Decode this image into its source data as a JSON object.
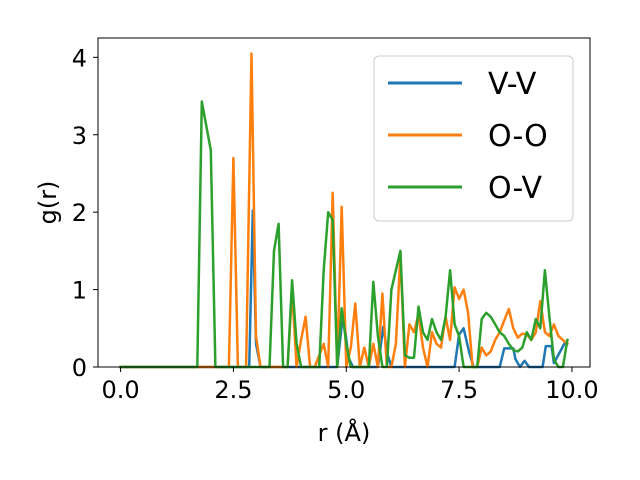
{
  "chart_data": {
    "type": "line",
    "title": "",
    "xlabel": "r (Å)",
    "ylabel": "g(r)",
    "xlim": [
      -0.5,
      10.4
    ],
    "ylim": [
      0,
      4.25
    ],
    "x_ticks": [
      0.0,
      2.5,
      5.0,
      7.5,
      10.0
    ],
    "x_tick_labels": [
      "0.0",
      "2.5",
      "5.0",
      "7.5",
      "10.0"
    ],
    "y_ticks": [
      0,
      1,
      2,
      3,
      4
    ],
    "y_tick_labels": [
      "0",
      "1",
      "2",
      "3",
      "4"
    ],
    "grid": false,
    "legend_position": "top-right",
    "series": [
      {
        "name": "V-V",
        "color": "#1f77b4",
        "x": [
          0.0,
          2.8,
          2.85,
          2.93,
          3.0,
          3.1,
          3.2,
          4.8,
          4.93,
          5.05,
          5.15,
          5.7,
          5.82,
          5.92,
          6.0,
          7.4,
          7.5,
          7.6,
          7.72,
          7.82,
          7.9,
          8.4,
          8.5,
          8.62,
          8.7,
          8.75,
          8.85,
          8.95,
          9.05,
          9.35,
          9.42,
          9.48,
          9.55,
          9.6,
          9.85
        ],
        "y": [
          0,
          0,
          0,
          2.02,
          0.3,
          0,
          0,
          0,
          0.7,
          0.12,
          0,
          0,
          0.52,
          0.15,
          0,
          0,
          0.42,
          0.5,
          0.2,
          0,
          0,
          0,
          0.24,
          0.24,
          0.24,
          0.1,
          0,
          0.08,
          0,
          0,
          0.27,
          0.27,
          0.27,
          0.05,
          0.32
        ]
      },
      {
        "name": "O-O",
        "color": "#ff7f0e",
        "x": [
          0.0,
          2.4,
          2.5,
          2.6,
          2.78,
          2.9,
          3.0,
          3.1,
          3.7,
          3.8,
          3.9,
          4.0,
          4.1,
          4.2,
          4.3,
          4.5,
          4.6,
          4.7,
          4.8,
          4.9,
          5.0,
          5.1,
          5.2,
          5.3,
          5.4,
          5.5,
          5.6,
          5.7,
          5.8,
          5.9,
          6.0,
          6.1,
          6.2,
          6.3,
          6.4,
          6.5,
          6.6,
          6.7,
          6.8,
          6.9,
          7.0,
          7.1,
          7.2,
          7.3,
          7.4,
          7.5,
          7.6,
          7.7,
          7.8,
          7.9,
          8.0,
          8.1,
          8.2,
          8.3,
          8.4,
          8.5,
          8.6,
          8.7,
          8.8,
          8.9,
          9.0,
          9.1,
          9.2,
          9.3,
          9.4,
          9.5,
          9.6,
          9.7,
          9.8,
          9.9
        ],
        "y": [
          0,
          0,
          2.7,
          0,
          0,
          4.05,
          0.4,
          0,
          0,
          1.0,
          0,
          0.35,
          0.65,
          0,
          0,
          0.3,
          0,
          2.25,
          0,
          2.07,
          0,
          0.25,
          0.82,
          0,
          0.25,
          0,
          0.3,
          0,
          0.95,
          0,
          0,
          0.3,
          1.45,
          0,
          0.55,
          0.45,
          0.68,
          0.25,
          0,
          0.45,
          0.3,
          0.25,
          0.65,
          0.35,
          1.03,
          0.88,
          1.0,
          0.7,
          0,
          0,
          0.25,
          0.15,
          0.2,
          0.35,
          0.45,
          0.6,
          0.75,
          0.5,
          0.38,
          0.43,
          0.42,
          0.35,
          0.45,
          0.85,
          0.45,
          0.4,
          0.55,
          0.4,
          0.35,
          0.3
        ]
      },
      {
        "name": "O-V",
        "color": "#2ca02c",
        "x": [
          0.0,
          1.7,
          1.8,
          2.0,
          2.1,
          2.2,
          3.3,
          3.4,
          3.5,
          3.6,
          3.7,
          3.8,
          3.9,
          4.0,
          4.1,
          4.2,
          4.3,
          4.4,
          4.5,
          4.6,
          4.7,
          4.8,
          4.9,
          5.0,
          5.1,
          5.2,
          5.3,
          5.4,
          5.5,
          5.6,
          5.7,
          5.8,
          5.9,
          6.0,
          6.1,
          6.2,
          6.3,
          6.4,
          6.5,
          6.6,
          6.7,
          6.8,
          6.9,
          7.0,
          7.1,
          7.2,
          7.3,
          7.4,
          7.5,
          7.6,
          7.7,
          7.8,
          7.9,
          8.0,
          8.1,
          8.2,
          8.3,
          8.4,
          8.5,
          8.6,
          8.7,
          8.8,
          8.9,
          9.0,
          9.1,
          9.2,
          9.3,
          9.4,
          9.5,
          9.6,
          9.7,
          9.8,
          9.9
        ],
        "y": [
          0,
          0,
          3.43,
          2.8,
          0,
          0,
          0,
          1.5,
          1.85,
          0,
          0,
          1.12,
          0.3,
          0,
          0,
          0,
          0,
          0,
          1.25,
          2.0,
          1.9,
          0,
          0.76,
          0.3,
          0,
          0,
          0,
          0,
          0,
          1.1,
          0.4,
          0,
          0,
          1.0,
          1.25,
          1.5,
          0.15,
          0.12,
          0.12,
          0.78,
          0.45,
          0.35,
          0.62,
          0.45,
          0.35,
          0.65,
          1.25,
          0.55,
          0.4,
          0,
          0,
          0,
          0,
          0.62,
          0.7,
          0.65,
          0.55,
          0.45,
          0.4,
          0.3,
          0.22,
          0.2,
          0.25,
          0.45,
          0.35,
          0.62,
          0.5,
          1.25,
          0.65,
          0.1,
          0,
          0,
          0.35
        ]
      }
    ]
  }
}
